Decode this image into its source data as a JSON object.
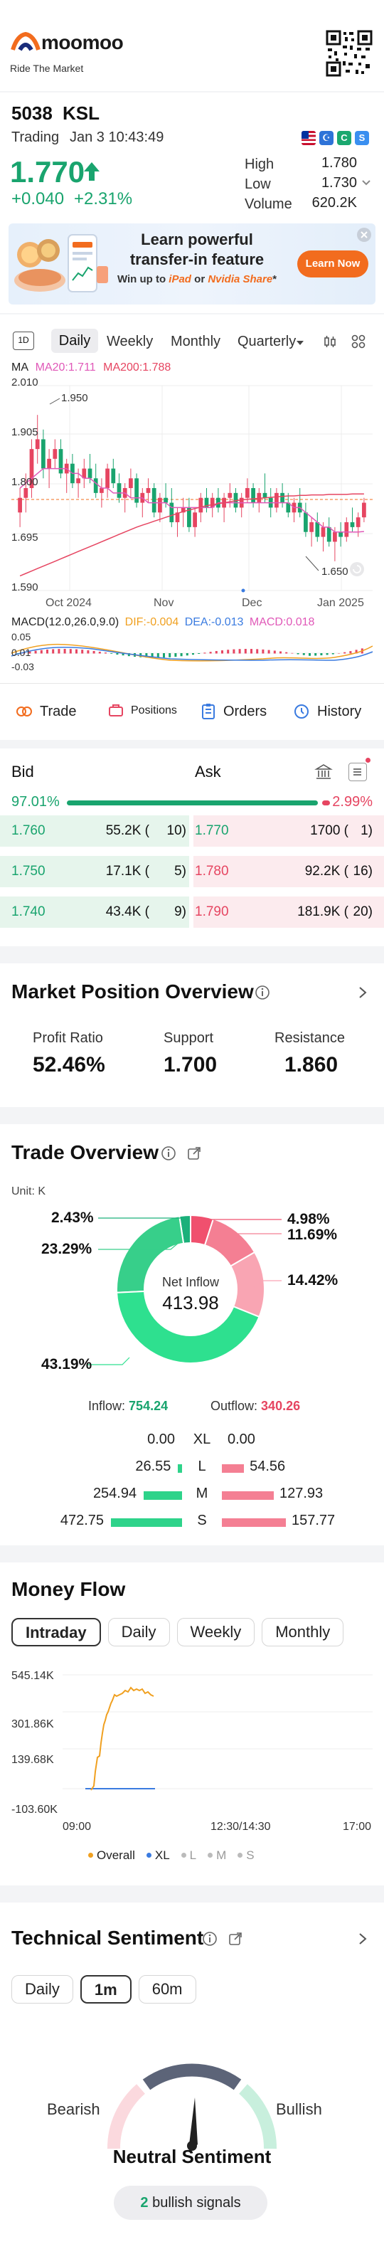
{
  "brand": {
    "name": "moomoo",
    "tagline": "Ride The Market"
  },
  "stock": {
    "code": "5038",
    "name": "KSL",
    "status": "Trading",
    "datetime": "Jan 3 10:43:49",
    "price": "1.770",
    "change": "+0.040",
    "change_pct": "+2.31%",
    "high_label": "High",
    "high": "1.780",
    "low_label": "Low",
    "low": "1.730",
    "volume_label": "Volume",
    "volume": "620.2K"
  },
  "banner": {
    "line1": "Learn powerful",
    "line2": "transfer-in feature",
    "line3_prefix": "Win up to ",
    "line3_ipad": "iPad",
    "line3_or": " or ",
    "line3_nvidia": "Nvidia Share",
    "line3_suffix": "*",
    "button": "Learn Now"
  },
  "chart_tabs": {
    "button_1d": "1D",
    "daily": "Daily",
    "weekly": "Weekly",
    "monthly": "Monthly",
    "quarterly": "Quarterly"
  },
  "ma_legend": {
    "ma": "MA",
    "ma20": "MA20:1.711",
    "ma200": "MA200:1.788"
  },
  "price_chart": {
    "y_top": "2.010",
    "y_1905": "1.905",
    "y_1800": "1.800",
    "y_1695": "1.695",
    "y_bottom": "1.590",
    "peak_label": "1.950",
    "low_label": "1.650",
    "x_oct": "Oct 2024",
    "x_nov": "Nov",
    "x_dec": "Dec",
    "x_jan": "Jan 2025"
  },
  "chart_data": {
    "type": "candlestick",
    "y_range": [
      1.59,
      2.01
    ],
    "ohlc": [
      [
        1.75,
        1.8,
        1.72,
        1.78
      ],
      [
        1.78,
        1.83,
        1.75,
        1.8
      ],
      [
        1.8,
        1.9,
        1.78,
        1.88
      ],
      [
        1.88,
        1.95,
        1.85,
        1.9
      ],
      [
        1.9,
        1.92,
        1.82,
        1.84
      ],
      [
        1.84,
        1.88,
        1.8,
        1.86
      ],
      [
        1.86,
        1.9,
        1.84,
        1.88
      ],
      [
        1.88,
        1.9,
        1.82,
        1.83
      ],
      [
        1.83,
        1.86,
        1.79,
        1.85
      ],
      [
        1.85,
        1.87,
        1.8,
        1.81
      ],
      [
        1.81,
        1.84,
        1.78,
        1.82
      ],
      [
        1.82,
        1.86,
        1.8,
        1.84
      ],
      [
        1.84,
        1.87,
        1.81,
        1.82
      ],
      [
        1.82,
        1.85,
        1.78,
        1.79
      ],
      [
        1.79,
        1.82,
        1.76,
        1.8
      ],
      [
        1.8,
        1.85,
        1.78,
        1.84
      ],
      [
        1.84,
        1.86,
        1.8,
        1.81
      ],
      [
        1.81,
        1.83,
        1.77,
        1.78
      ],
      [
        1.78,
        1.81,
        1.75,
        1.8
      ],
      [
        1.8,
        1.84,
        1.78,
        1.82
      ],
      [
        1.82,
        1.83,
        1.76,
        1.77
      ],
      [
        1.77,
        1.8,
        1.74,
        1.79
      ],
      [
        1.79,
        1.82,
        1.77,
        1.8
      ],
      [
        1.8,
        1.81,
        1.74,
        1.75
      ],
      [
        1.75,
        1.79,
        1.73,
        1.78
      ],
      [
        1.78,
        1.81,
        1.76,
        1.77
      ],
      [
        1.77,
        1.8,
        1.72,
        1.73
      ],
      [
        1.73,
        1.76,
        1.7,
        1.75
      ],
      [
        1.75,
        1.78,
        1.72,
        1.76
      ],
      [
        1.76,
        1.78,
        1.71,
        1.72
      ],
      [
        1.72,
        1.76,
        1.7,
        1.75
      ],
      [
        1.75,
        1.79,
        1.73,
        1.78
      ],
      [
        1.78,
        1.8,
        1.75,
        1.76
      ],
      [
        1.76,
        1.79,
        1.74,
        1.78
      ],
      [
        1.78,
        1.8,
        1.75,
        1.76
      ],
      [
        1.76,
        1.79,
        1.73,
        1.78
      ],
      [
        1.78,
        1.81,
        1.76,
        1.79
      ],
      [
        1.79,
        1.8,
        1.75,
        1.76
      ],
      [
        1.76,
        1.79,
        1.74,
        1.78
      ],
      [
        1.78,
        1.82,
        1.77,
        1.8
      ],
      [
        1.8,
        1.81,
        1.76,
        1.77
      ],
      [
        1.77,
        1.8,
        1.75,
        1.79
      ],
      [
        1.79,
        1.83,
        1.77,
        1.78
      ],
      [
        1.78,
        1.8,
        1.74,
        1.76
      ],
      [
        1.76,
        1.8,
        1.75,
        1.79
      ],
      [
        1.79,
        1.81,
        1.76,
        1.77
      ],
      [
        1.77,
        1.79,
        1.74,
        1.75
      ],
      [
        1.75,
        1.78,
        1.73,
        1.77
      ],
      [
        1.77,
        1.8,
        1.74,
        1.75
      ],
      [
        1.75,
        1.77,
        1.7,
        1.71
      ],
      [
        1.71,
        1.74,
        1.68,
        1.73
      ],
      [
        1.73,
        1.75,
        1.69,
        1.7
      ],
      [
        1.7,
        1.73,
        1.67,
        1.72
      ],
      [
        1.72,
        1.74,
        1.68,
        1.69
      ],
      [
        1.69,
        1.72,
        1.65,
        1.71
      ],
      [
        1.71,
        1.73,
        1.68,
        1.7
      ],
      [
        1.7,
        1.74,
        1.69,
        1.73
      ],
      [
        1.73,
        1.76,
        1.71,
        1.72
      ],
      [
        1.72,
        1.75,
        1.7,
        1.74
      ],
      [
        1.74,
        1.78,
        1.73,
        1.77
      ]
    ],
    "ma20": [
      1.8,
      1.81,
      1.82,
      1.83,
      1.84,
      1.84,
      1.84,
      1.84,
      1.84,
      1.83,
      1.83,
      1.82,
      1.82,
      1.81,
      1.8,
      1.8,
      1.79,
      1.79,
      1.79,
      1.78,
      1.78,
      1.78,
      1.77,
      1.77,
      1.77,
      1.77,
      1.76,
      1.76,
      1.76,
      1.76,
      1.76,
      1.76,
      1.76,
      1.76,
      1.77,
      1.77,
      1.77,
      1.77,
      1.77,
      1.77,
      1.77,
      1.77,
      1.77,
      1.77,
      1.77,
      1.77,
      1.77,
      1.76,
      1.76,
      1.75,
      1.74,
      1.73,
      1.72,
      1.72,
      1.71,
      1.71,
      1.71,
      1.71,
      1.71,
      1.711
    ],
    "ma200": [
      1.62,
      1.625,
      1.63,
      1.635,
      1.64,
      1.645,
      1.65,
      1.655,
      1.66,
      1.665,
      1.67,
      1.675,
      1.68,
      1.685,
      1.69,
      1.695,
      1.7,
      1.705,
      1.71,
      1.715,
      1.72,
      1.724,
      1.728,
      1.732,
      1.736,
      1.74,
      1.744,
      1.748,
      1.752,
      1.755,
      1.758,
      1.761,
      1.764,
      1.766,
      1.768,
      1.77,
      1.772,
      1.774,
      1.776,
      1.777,
      1.778,
      1.779,
      1.78,
      1.781,
      1.782,
      1.783,
      1.784,
      1.784,
      1.785,
      1.785,
      1.786,
      1.786,
      1.786,
      1.787,
      1.787,
      1.787,
      1.787,
      1.788,
      1.788,
      1.788
    ]
  },
  "macd": {
    "label": "MACD(12.0,26.0,9.0)",
    "dif": "DIF:-0.004",
    "dea": "DEA:-0.013",
    "macd_val": "MACD:0.018",
    "y_top": "0.05",
    "y_mid": "0.01",
    "y_bot": "-0.03"
  },
  "actions": {
    "trade": "Trade",
    "positions": "Positions",
    "orders": "Orders",
    "history": "History"
  },
  "orderbook": {
    "bid_label": "Bid",
    "ask_label": "Ask",
    "bid_pct": "97.01%",
    "ask_pct": "2.99%",
    "rows": [
      {
        "bid_price": "1.760",
        "bid_vol": "55.2K (",
        "bid_cnt": "10)",
        "ask_price": "1.770",
        "ask_vol": "1700 (",
        "ask_cnt": "1)"
      },
      {
        "bid_price": "1.750",
        "bid_vol": "17.1K (",
        "bid_cnt": "5)",
        "ask_price": "1.780",
        "ask_vol": "92.2K (",
        "ask_cnt": "16)"
      },
      {
        "bid_price": "1.740",
        "bid_vol": "43.4K (",
        "bid_cnt": "9)",
        "ask_price": "1.790",
        "ask_vol": "181.9K (",
        "ask_cnt": "20)"
      }
    ]
  },
  "market_position": {
    "title": "Market Position Overview",
    "profit_label": "Profit Ratio",
    "profit": "52.46%",
    "support_label": "Support",
    "support": "1.700",
    "resistance_label": "Resistance",
    "resistance": "1.860"
  },
  "trade_overview": {
    "title": "Trade Overview",
    "unit": "Unit: K",
    "center_label": "Net Inflow",
    "center_value": "413.98",
    "pct_243": "2.43%",
    "pct_2329": "23.29%",
    "pct_4319": "43.19%",
    "pct_498": "4.98%",
    "pct_1169": "11.69%",
    "pct_1442": "14.42%",
    "inflow_label": "Inflow:",
    "inflow": "754.24",
    "outflow_label": "Outflow:",
    "outflow": "340.26",
    "rows": [
      {
        "in": "0.00",
        "size": "XL",
        "out": "0.00",
        "in_frac": 0,
        "out_frac": 0
      },
      {
        "in": "26.55",
        "size": "L",
        "out": "54.56",
        "in_frac": 0.056,
        "out_frac": 0.346
      },
      {
        "in": "254.94",
        "size": "M",
        "out": "127.93",
        "in_frac": 0.539,
        "out_frac": 0.811
      },
      {
        "in": "472.75",
        "size": "S",
        "out": "157.77",
        "in_frac": 1,
        "out_frac": 1
      }
    ],
    "ring_in": [
      0.0243,
      0.2329,
      0.4319
    ],
    "ring_out": [
      0.0498,
      0.1169,
      0.1442
    ],
    "colors": {
      "in_dark": "#1bb07a",
      "in_mid": "#37cf8a",
      "in_light": "#2ee08f",
      "out_dark": "#f0506e",
      "out_mid": "#f47f93",
      "out_light": "#f9a5b3"
    }
  },
  "money_flow": {
    "title": "Money Flow",
    "tabs": [
      "Intraday",
      "Daily",
      "Weekly",
      "Monthly"
    ],
    "y1": "545.14K",
    "y2": "301.86K",
    "y3": "139.68K",
    "y4": "-103.60K",
    "x1": "09:00",
    "x2": "12:30/14:30",
    "x3": "17:00",
    "legend": [
      "Overall",
      "XL",
      "L",
      "M",
      "S"
    ]
  },
  "technical": {
    "title": "Technical Sentiment",
    "tabs": [
      "Daily",
      "1m",
      "60m"
    ],
    "bearish": "Bearish",
    "bullish": "Bullish",
    "sentiment": "Neutral Sentiment",
    "signal_count": "2",
    "signal_text": " bullish signals"
  },
  "colors": {
    "up": "#e64561",
    "down": "#19a46e",
    "accent": "#f26c1e",
    "brand_blue": "#1a2c7a"
  }
}
